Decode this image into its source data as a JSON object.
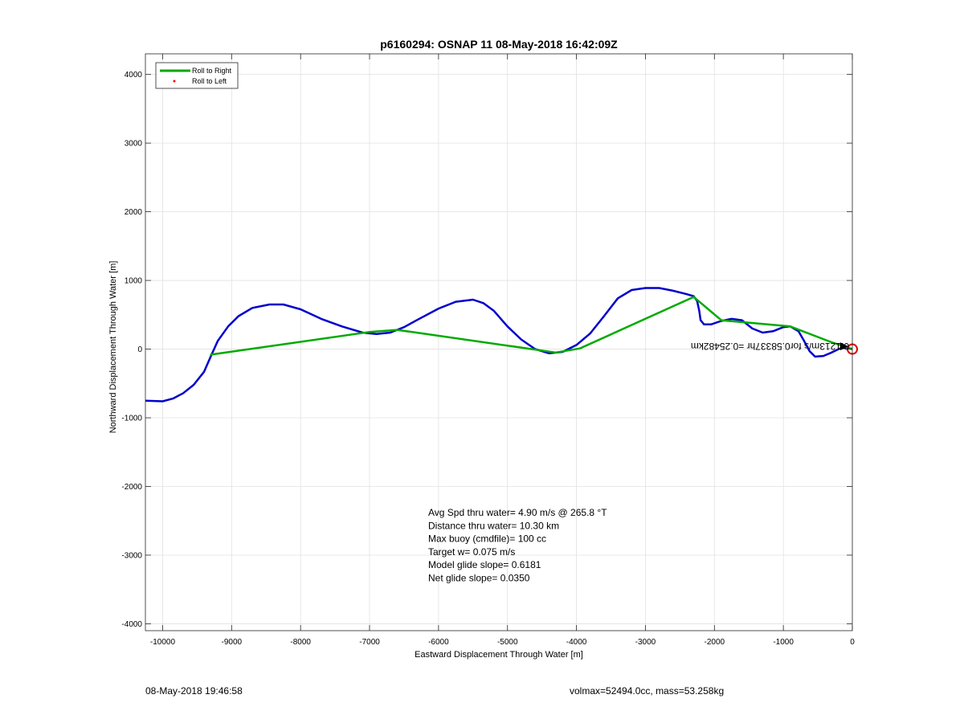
{
  "chart_data": {
    "type": "line",
    "title": "p6160294: OSNAP 11 08-May-2018 16:42:09Z",
    "xlabel": "Eastward Displacement Through Water [m]",
    "ylabel": "Northward Displacement Through Water [m]",
    "xlim": [
      -10250,
      0
    ],
    "ylim": [
      -4100,
      4300
    ],
    "xticks": [
      -10000,
      -9000,
      -8000,
      -7000,
      -6000,
      -5000,
      -4000,
      -3000,
      -2000,
      -1000,
      0
    ],
    "yticks": [
      -4000,
      -3000,
      -2000,
      -1000,
      0,
      1000,
      2000,
      3000,
      4000
    ],
    "xtick_labels": [
      "-10000",
      "-9000",
      "-8000",
      "-7000",
      "-6000",
      "-5000",
      "-4000",
      "-3000",
      "-2000",
      "-1000",
      "0"
    ],
    "ytick_labels": [
      "-4000",
      "-3000",
      "-2000",
      "-1000",
      "0",
      "1000",
      "2000",
      "3000",
      "4000"
    ],
    "grid": true,
    "legend_position": "top-left",
    "legend": [
      {
        "label": "Roll to Right",
        "color": "#00aa00",
        "style": "line"
      },
      {
        "label": "Roll to Left",
        "color": "#ff0000",
        "style": "dot"
      }
    ],
    "series": [
      {
        "color": "#0000cc",
        "points": [
          [
            -10250,
            -750
          ],
          [
            -10000,
            -760
          ],
          [
            -9850,
            -720
          ],
          [
            -9700,
            -640
          ],
          [
            -9550,
            -520
          ],
          [
            -9400,
            -330
          ],
          [
            -9300,
            -100
          ],
          [
            -9200,
            120
          ],
          [
            -9050,
            330
          ],
          [
            -8900,
            480
          ],
          [
            -8700,
            600
          ],
          [
            -8450,
            650
          ],
          [
            -8250,
            650
          ],
          [
            -8000,
            580
          ],
          [
            -7700,
            440
          ],
          [
            -7400,
            330
          ],
          [
            -7100,
            240
          ],
          [
            -6900,
            220
          ],
          [
            -6700,
            240
          ],
          [
            -6500,
            320
          ],
          [
            -6300,
            430
          ],
          [
            -6000,
            590
          ],
          [
            -5750,
            690
          ],
          [
            -5500,
            720
          ],
          [
            -5350,
            670
          ],
          [
            -5200,
            560
          ],
          [
            -5000,
            330
          ],
          [
            -4800,
            140
          ],
          [
            -4600,
            0
          ],
          [
            -4400,
            -60
          ],
          [
            -4200,
            -40
          ],
          [
            -4000,
            60
          ],
          [
            -3800,
            230
          ],
          [
            -3600,
            480
          ],
          [
            -3400,
            740
          ],
          [
            -3200,
            860
          ],
          [
            -3000,
            890
          ],
          [
            -2800,
            890
          ],
          [
            -2600,
            850
          ],
          [
            -2400,
            800
          ],
          [
            -2300,
            770
          ],
          [
            -2250,
            700
          ],
          [
            -2220,
            560
          ],
          [
            -2200,
            420
          ],
          [
            -2150,
            360
          ],
          [
            -2050,
            360
          ],
          [
            -1900,
            410
          ],
          [
            -1750,
            440
          ],
          [
            -1600,
            420
          ],
          [
            -1450,
            300
          ],
          [
            -1300,
            240
          ],
          [
            -1150,
            260
          ],
          [
            -1000,
            320
          ],
          [
            -900,
            330
          ],
          [
            -780,
            260
          ],
          [
            -700,
            120
          ],
          [
            -620,
            -30
          ],
          [
            -540,
            -110
          ],
          [
            -420,
            -100
          ],
          [
            -300,
            -50
          ],
          [
            -180,
            10
          ],
          [
            -80,
            20
          ],
          [
            0,
            0
          ]
        ]
      },
      {
        "color": "#00aa00",
        "points": [
          [
            -9300,
            -80
          ],
          [
            -7000,
            250
          ],
          [
            -6600,
            280
          ],
          [
            -4300,
            -50
          ],
          [
            -3950,
            10
          ],
          [
            -2300,
            760
          ],
          [
            -1900,
            420
          ],
          [
            -900,
            330
          ],
          [
            -300,
            100
          ],
          [
            0,
            0
          ]
        ]
      }
    ],
    "markers": [
      {
        "x": 0,
        "y": 0,
        "shape": "circle",
        "color": "#dd0000"
      },
      {
        "x": -130,
        "y": 40,
        "shape": "triangle",
        "color": "#000000"
      }
    ],
    "annotations": [
      {
        "text": "Avg Spd thru water=  4.90 m/s @ 265.8 °T"
      },
      {
        "text": "Distance thru water= 10.30 km"
      },
      {
        "text": "Max buoy (cmdfile)= 100 cc"
      },
      {
        "text": "Target w= 0.075 m/s"
      },
      {
        "text": "Model glide slope= 0.6181"
      },
      {
        "text": "Net glide slope= 0.0350"
      }
    ],
    "rotated_annotation": "0.1213m/s for0.58337hr =0.25482km"
  },
  "footer": {
    "left": "08-May-2018 19:46:58",
    "right": "volmax=52494.0cc, mass=53.258kg"
  }
}
